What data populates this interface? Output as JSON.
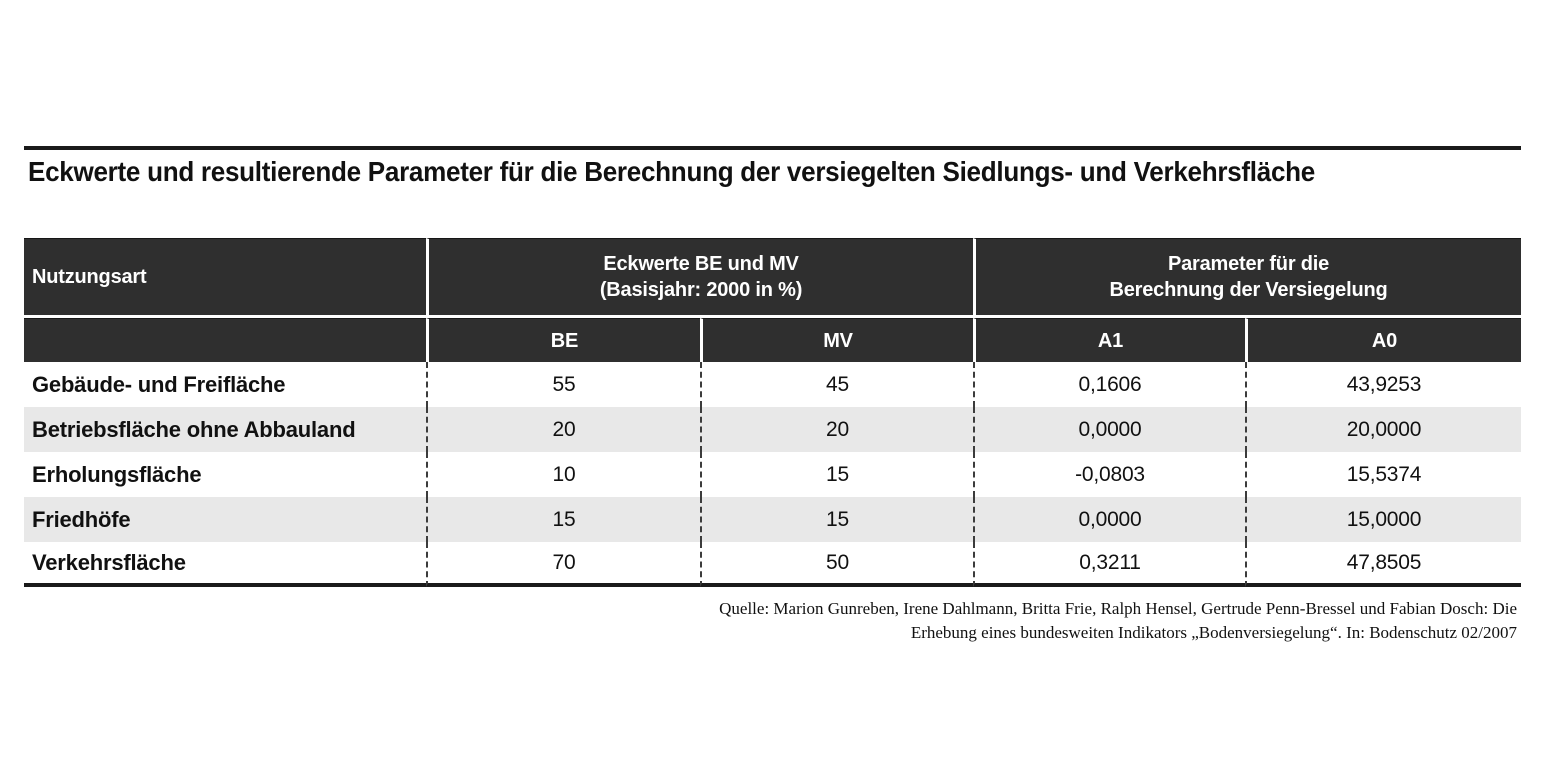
{
  "title": "Eckwerte und resultierende Parameter für die Berechnung der versiegelten Siedlungs- und Verkehrsfläche",
  "table": {
    "col_header_left": "Nutzungsart",
    "group_headers": {
      "eckwerte_line1": "Eckwerte BE und MV",
      "eckwerte_line2": "(Basisjahr: 2000 in %)",
      "parameter_line1": "Parameter für die",
      "parameter_line2": "Berechnung der Versiegelung"
    },
    "sub_headers": {
      "be": "BE",
      "mv": "MV",
      "a1": "A1",
      "a0": "A0"
    },
    "rows": [
      {
        "label": "Gebäude- und Freifläche",
        "be": "55",
        "mv": "45",
        "a1": "0,1606",
        "a0": "43,9253"
      },
      {
        "label": "Betriebsfläche ohne Abbauland",
        "be": "20",
        "mv": "20",
        "a1": "0,0000",
        "a0": "20,0000"
      },
      {
        "label": "Erholungsfläche",
        "be": "10",
        "mv": "15",
        "a1": "-0,0803",
        "a0": "15,5374"
      },
      {
        "label": "Friedhöfe",
        "be": "15",
        "mv": "15",
        "a1": "0,0000",
        "a0": "15,0000"
      },
      {
        "label": "Verkehrsfläche",
        "be": "70",
        "mv": "50",
        "a1": "0,3211",
        "a0": "47,8505"
      }
    ]
  },
  "source": {
    "line1": "Quelle: Marion Gunreben, Irene Dahlmann, Britta Frie, Ralph Hensel, Gertrude Penn-Bressel und Fabian Dosch: Die",
    "line2": "Erhebung eines bundesweiten Indikators „Bodenversiegelung“. In: Bodenschutz 02/2007"
  },
  "colors": {
    "header_bg": "#2f2f2f",
    "stripe_bg": "#e8e8e8",
    "rule": "#1a1a1a",
    "header_text": "#ffffff",
    "body_text": "#111111"
  },
  "chart_data": {
    "type": "table",
    "title": "Eckwerte und resultierende Parameter für die Berechnung der versiegelten Siedlungs- und Verkehrsfläche",
    "column_groups": [
      "Eckwerte BE und MV (Basisjahr: 2000 in %)",
      "Parameter für die Berechnung der Versiegelung"
    ],
    "columns": [
      "Nutzungsart",
      "BE",
      "MV",
      "A1",
      "A0"
    ],
    "rows": [
      [
        "Gebäude- und Freifläche",
        55,
        45,
        0.1606,
        43.9253
      ],
      [
        "Betriebsfläche ohne Abbauland",
        20,
        20,
        0.0,
        20.0
      ],
      [
        "Erholungsfläche",
        10,
        15,
        -0.0803,
        15.5374
      ],
      [
        "Friedhöfe",
        15,
        15,
        0.0,
        15.0
      ],
      [
        "Verkehrsfläche",
        70,
        50,
        0.3211,
        47.8505
      ]
    ],
    "source": "Quelle: Marion Gunreben, Irene Dahlmann, Britta Frie, Ralph Hensel, Gertrude Penn-Bressel und Fabian Dosch: Die Erhebung eines bundesweiten Indikators „Bodenversiegelung“. In: Bodenschutz 02/2007",
    "notes": "BE/MV in Prozent, Basisjahr 2000; Zeilen abwechselnd weiß/grau gestreift"
  }
}
